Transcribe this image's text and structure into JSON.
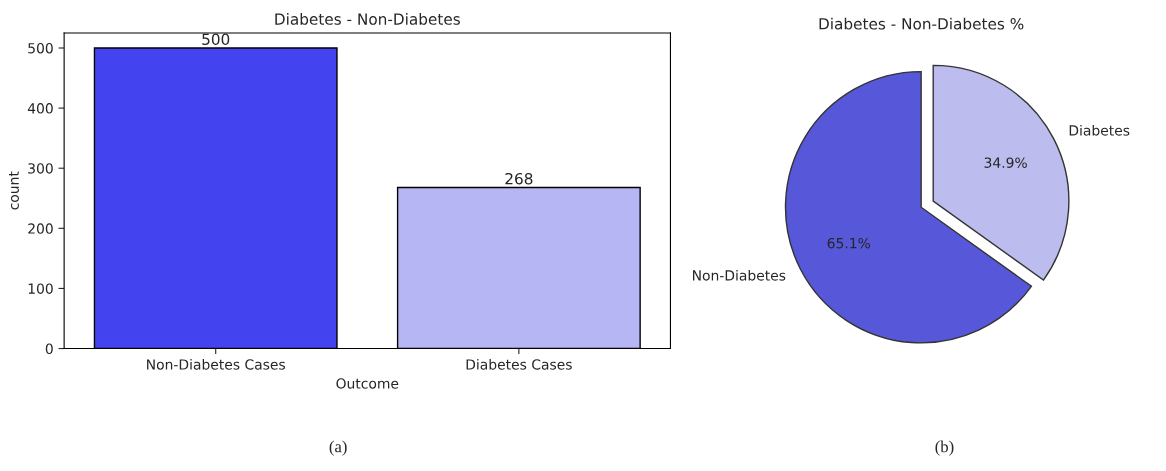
{
  "chart_data": [
    {
      "type": "bar",
      "title": "Diabetes - Non-Diabetes",
      "xlabel": "Outcome",
      "ylabel": "count",
      "categories": [
        "Non-Diabetes Cases",
        "Diabetes Cases"
      ],
      "values": [
        500,
        268
      ],
      "colors": [
        "#4343ef",
        "#b7b6f5"
      ],
      "ylim": [
        0,
        525
      ],
      "yticks": [
        0,
        100,
        200,
        300,
        400,
        500
      ],
      "data_labels": true,
      "grid": false,
      "legend": false,
      "annotations": [
        "(a)"
      ]
    },
    {
      "type": "pie",
      "title": "Diabetes - Non-Diabetes %",
      "categories": [
        "Non-Diabetes",
        "Diabetes"
      ],
      "values": [
        65.1,
        34.9
      ],
      "colors": [
        "#5757d9",
        "#bcbcee"
      ],
      "value_labels": [
        "65.1%",
        "34.9%"
      ],
      "legend": false,
      "annotations": [
        "(b)"
      ]
    }
  ]
}
